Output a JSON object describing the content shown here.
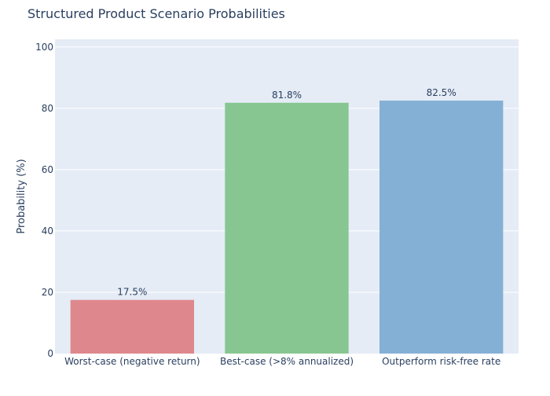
{
  "chart_data": {
    "type": "bar",
    "title": "Structured Product Scenario Probabilities",
    "xlabel": "",
    "ylabel": "Probability (%)",
    "categories": [
      "Worst-case (negative return)",
      "Best-case (>8% annualized)",
      "Outperform risk-free rate"
    ],
    "values": [
      17.5,
      81.8,
      82.5
    ],
    "data_labels": [
      "17.5%",
      "81.8%",
      "82.5%"
    ],
    "colors": [
      "#DE888D",
      "#88C691",
      "#84B0D6"
    ],
    "ylim": [
      0,
      100
    ],
    "yticks": [
      0,
      20,
      40,
      60,
      80,
      100
    ],
    "grid": true,
    "legend": "none",
    "plot_bg": "#E5ECF6",
    "grid_color": "#ffffff",
    "text_color": "#2a3f5f"
  }
}
